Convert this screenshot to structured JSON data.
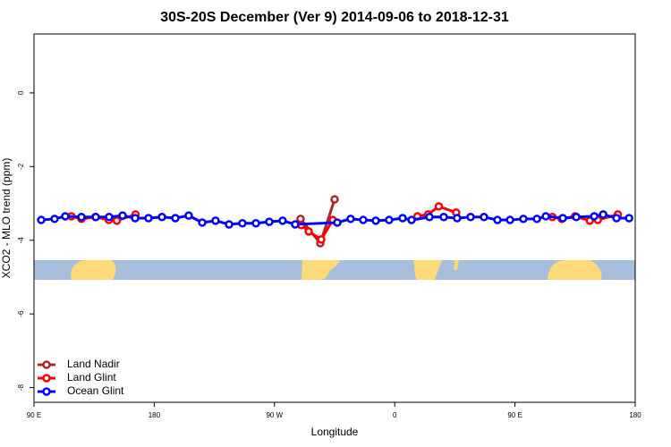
{
  "chart_data": {
    "type": "line",
    "title": "30S-20S December (Ver 9)   2014-09-06 to 2018-12-31",
    "x_label": "Longitude",
    "y_label": "XCO2 - MLO trend (ppm)",
    "xlim": [
      90,
      540
    ],
    "ylim": [
      -8.4,
      1.6
    ],
    "xticks": [
      {
        "value": 90,
        "label": "90 E"
      },
      180,
      {
        "value": 270,
        "label": "90 W"
      },
      {
        "value": 360,
        "label": "0"
      },
      {
        "value": 450,
        "label": "90 E"
      },
      {
        "value": 540,
        "label": "180"
      }
    ],
    "yticks": [
      0,
      -2,
      -4,
      -6,
      -8
    ],
    "legend": "bottom-left",
    "series": [
      {
        "name": "Land Nadir",
        "color": "#a52a2a",
        "x": [
          289.5,
          304.3,
          315
        ],
        "values": [
          -3.42,
          -4.08,
          -2.89
        ]
      },
      {
        "name": "Land Glint",
        "color": "#ff0000",
        "x": [
          118,
          125.5,
          136,
          146,
          152,
          166,
          null,
          290,
          295.6,
          305,
          313.6,
          null,
          377,
          385,
          393,
          406,
          null,
          478,
          485,
          495,
          506,
          512,
          527
        ],
        "values": [
          -3.35,
          -3.42,
          -3.37,
          -3.45,
          -3.47,
          -3.3,
          null,
          -3.59,
          -3.76,
          -3.98,
          -3.45,
          null,
          -3.35,
          -3.3,
          -3.08,
          -3.25,
          null,
          -3.37,
          -3.42,
          -3.35,
          -3.47,
          -3.45,
          -3.3
        ]
      },
      {
        "name": "Ocean Glint",
        "color": "#0000ff",
        "x": [
          95.4,
          105.4,
          113.4,
          125.5,
          136.2,
          146.2,
          156.3,
          165.7,
          175.7,
          185.8,
          195.8,
          205.8,
          215.9,
          225.9,
          236,
          246,
          256.1,
          266.1,
          276.1,
          285.5,
          317,
          327,
          336.4,
          345.8,
          355.8,
          365.9,
          372.6,
          386,
          396.7,
          406.7,
          416.8,
          426.8,
          436.9,
          446.3,
          456.3,
          466.4,
          473.1,
          485.8,
          495.9,
          509.3,
          516,
          526,
          535.4
        ],
        "values": [
          -3.45,
          -3.42,
          -3.35,
          -3.37,
          -3.37,
          -3.37,
          -3.33,
          -3.4,
          -3.4,
          -3.37,
          -3.4,
          -3.33,
          -3.52,
          -3.47,
          -3.57,
          -3.54,
          -3.54,
          -3.5,
          -3.47,
          -3.57,
          -3.52,
          -3.42,
          -3.45,
          -3.47,
          -3.45,
          -3.4,
          -3.45,
          -3.37,
          -3.37,
          -3.4,
          -3.37,
          -3.37,
          -3.45,
          -3.45,
          -3.42,
          -3.42,
          -3.35,
          -3.4,
          -3.37,
          -3.35,
          -3.3,
          -3.4,
          -3.4
        ]
      }
    ]
  }
}
